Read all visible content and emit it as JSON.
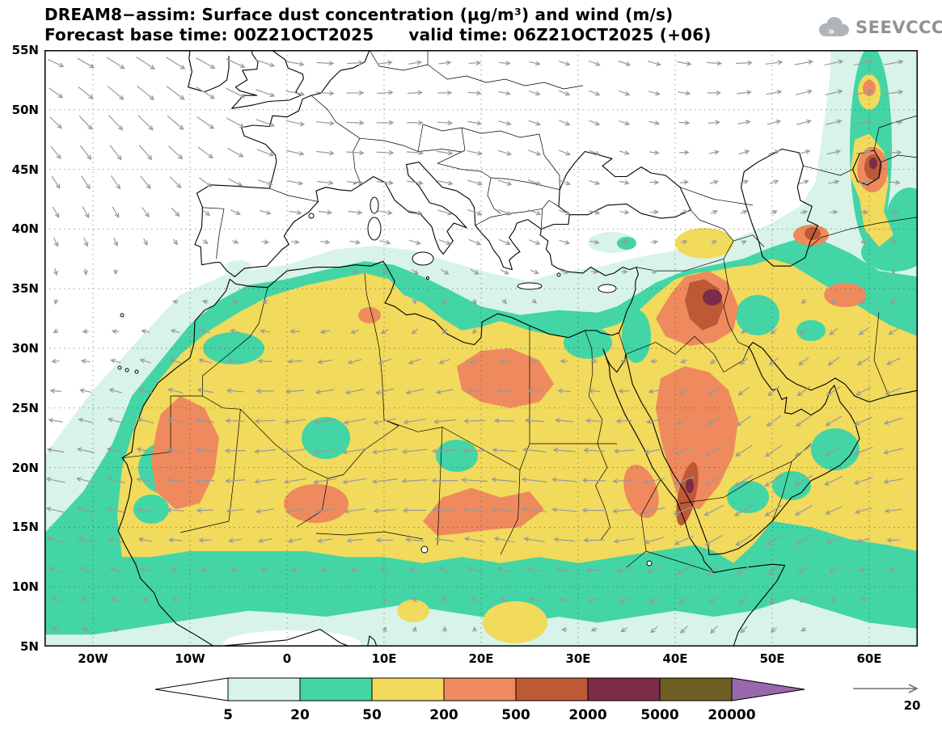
{
  "header": {
    "title": "DREAM8−assim: Surface dust concentration (µg/m³) and wind (m/s)",
    "subtitle": "Forecast base time: 00Z21OCT2025      valid time: 06Z21OCT2025 (+06)",
    "logo_text": "SEEVCCC"
  },
  "chart_data": {
    "type": "heatmap",
    "title": "DREAM8−assim: Surface dust concentration (µg/m³) and wind (m/s)",
    "model": "DREAM8-assim",
    "variable": "Surface dust concentration",
    "units": "µg/m³",
    "overlay": "wind (m/s)",
    "forecast_base_time": "00Z21OCT2025",
    "valid_time": "06Z21OCT2025",
    "lead": "+06",
    "x_axis": {
      "range": [
        -25,
        65
      ],
      "ticks": [
        {
          "deg": -20,
          "label": "20W"
        },
        {
          "deg": -10,
          "label": "10W"
        },
        {
          "deg": 0,
          "label": "0"
        },
        {
          "deg": 10,
          "label": "10E"
        },
        {
          "deg": 20,
          "label": "20E"
        },
        {
          "deg": 30,
          "label": "30E"
        },
        {
          "deg": 40,
          "label": "40E"
        },
        {
          "deg": 50,
          "label": "50E"
        },
        {
          "deg": 60,
          "label": "60E"
        }
      ]
    },
    "y_axis": {
      "range": [
        5,
        55
      ],
      "ticks": [
        {
          "deg": 5,
          "label": "5N"
        },
        {
          "deg": 10,
          "label": "10N"
        },
        {
          "deg": 15,
          "label": "15N"
        },
        {
          "deg": 20,
          "label": "20N"
        },
        {
          "deg": 25,
          "label": "25N"
        },
        {
          "deg": 30,
          "label": "30N"
        },
        {
          "deg": 35,
          "label": "35N"
        },
        {
          "deg": 40,
          "label": "40N"
        },
        {
          "deg": 45,
          "label": "45N"
        },
        {
          "deg": 50,
          "label": "50N"
        },
        {
          "deg": 55,
          "label": "55N"
        }
      ]
    },
    "levels": [
      5,
      20,
      50,
      200,
      500,
      2000,
      5000,
      20000
    ],
    "level_colors": [
      "#ffffff",
      "#d8f3ea",
      "#43d5a5",
      "#f1da5c",
      "#ee8a5d",
      "#bd5a35",
      "#7c2b49",
      "#6f5e22",
      "#9a67ad"
    ],
    "grid": true,
    "legend_position": "bottom",
    "wind_reference": {
      "value": "20",
      "units": "m/s"
    },
    "style": {
      "wind_arrow_color": "#98999b",
      "grid_color": "#3a3a3a",
      "logo_color": "#aeb4b8"
    }
  }
}
